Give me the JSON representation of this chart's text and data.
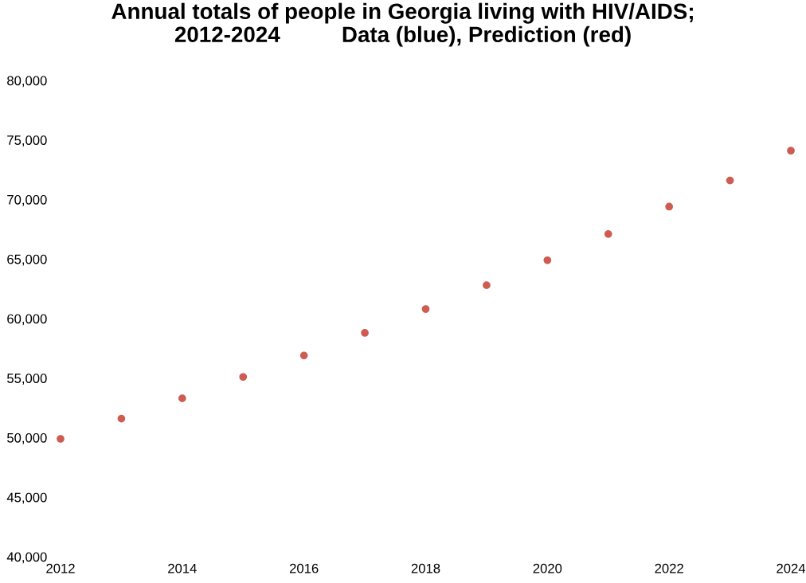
{
  "chart_data": {
    "type": "scatter",
    "title": "Annual totals of people in Georgia living with HIV/AIDS;\n2012-2024          Data (blue), Prediction (red)",
    "x": [
      2012,
      2013,
      2014,
      2015,
      2016,
      2017,
      2018,
      2019,
      2020,
      2021,
      2022,
      2023,
      2024
    ],
    "series": [
      {
        "color": "#cd5c52",
        "values": [
          49900,
          51600,
          53300,
          55100,
          56900,
          58800,
          60800,
          62800,
          64900,
          67100,
          69400,
          71600,
          74100
        ]
      }
    ],
    "xlim": [
      2012,
      2024
    ],
    "xticks": [
      2012,
      2014,
      2016,
      2018,
      2020,
      2022,
      2024
    ],
    "ylim": [
      40000,
      80000
    ],
    "yticks": [
      {
        "value": 40000,
        "label": "40,000"
      },
      {
        "value": 45000,
        "label": "45,000"
      },
      {
        "value": 50000,
        "label": "50,000"
      },
      {
        "value": 55000,
        "label": "55,000"
      },
      {
        "value": 60000,
        "label": "60,000"
      },
      {
        "value": 65000,
        "label": "65,000"
      },
      {
        "value": 70000,
        "label": "70,000"
      },
      {
        "value": 75000,
        "label": "75,000"
      },
      {
        "value": 80000,
        "label": "80,000"
      }
    ],
    "grid": false,
    "legend": false,
    "marker": "circle"
  }
}
